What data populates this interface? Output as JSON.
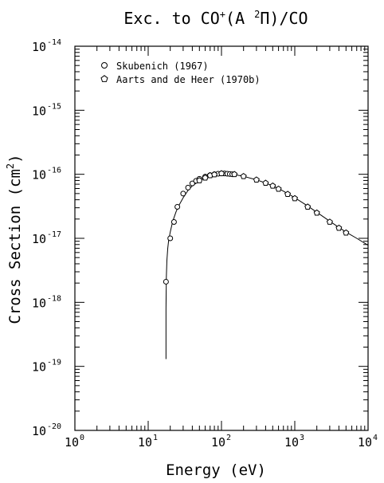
{
  "chart_data": {
    "type": "scatter",
    "title_main": "Exc. to CO",
    "title_sup": "+",
    "title_rest": "(A ",
    "title_state_sup": "2",
    "title_state": "Π)/CO",
    "xlabel": "Energy (eV)",
    "ylabel_main": "Cross Section (cm",
    "ylabel_sup": "2",
    "ylabel_end": ")",
    "x_scale": "log",
    "y_scale": "log",
    "xlim": [
      1,
      10000
    ],
    "ylim": [
      1e-20,
      1e-14
    ],
    "x_ticks": [
      {
        "base": "10",
        "exp": "0",
        "value": 1
      },
      {
        "base": "10",
        "exp": "1",
        "value": 10
      },
      {
        "base": "10",
        "exp": "2",
        "value": 100
      },
      {
        "base": "10",
        "exp": "3",
        "value": 1000
      },
      {
        "base": "10",
        "exp": "4",
        "value": 10000
      }
    ],
    "y_ticks": [
      {
        "base": "10",
        "exp": "-20",
        "value": 1e-20
      },
      {
        "base": "10",
        "exp": "-19",
        "value": 1e-19
      },
      {
        "base": "10",
        "exp": "-18",
        "value": 1e-18
      },
      {
        "base": "10",
        "exp": "-17",
        "value": 1e-17
      },
      {
        "base": "10",
        "exp": "-16",
        "value": 1e-16
      },
      {
        "base": "10",
        "exp": "-15",
        "value": 1e-15
      },
      {
        "base": "10",
        "exp": "-14",
        "value": 1e-14
      }
    ],
    "legend_position": "top-left",
    "grid": false,
    "series": [
      {
        "name": "Skubenich (1967)",
        "marker": "circle",
        "x": [
          17.5,
          20,
          22.5,
          25,
          30,
          35,
          40,
          45,
          50,
          60,
          70,
          80,
          90,
          100,
          110,
          120,
          130,
          140
        ],
        "y": [
          2.1e-18,
          1e-17,
          1.8e-17,
          3.1e-17,
          5e-17,
          6.2e-17,
          7.2e-17,
          7.9e-17,
          8.5e-17,
          9.2e-17,
          9.7e-17,
          1e-16,
          1.02e-16,
          1.03e-16,
          1.03e-16,
          1.02e-16,
          1.01e-16,
          1e-16
        ]
      },
      {
        "name": "Aarts and de Heer (1970b)",
        "marker": "pentagon",
        "x": [
          50,
          60,
          70,
          80,
          100,
          150,
          200,
          300,
          400,
          500,
          600,
          800,
          1000,
          1500,
          2000,
          3000,
          4000,
          5000
        ],
        "y": [
          8e-17,
          8.8e-17,
          9.6e-17,
          9.9e-17,
          1.03e-16,
          1e-16,
          9.3e-17,
          8.2e-17,
          7.3e-17,
          6.6e-17,
          5.9e-17,
          4.9e-17,
          4.2e-17,
          3.1e-17,
          2.5e-17,
          1.8e-17,
          1.45e-17,
          1.22e-17
        ]
      }
    ],
    "fit_curve": {
      "x": [
        17.5,
        17.5,
        17.7,
        18,
        18.5,
        19,
        20,
        21,
        22,
        24,
        26,
        30,
        35,
        40,
        50,
        60,
        70,
        80,
        100,
        120,
        150,
        200,
        300,
        400,
        500,
        600,
        800,
        1000,
        1500,
        2000,
        3000,
        4000,
        5000,
        7000,
        10000
      ],
      "y": [
        1.3e-19,
        8e-19,
        2.5e-18,
        4.5e-18,
        7e-18,
        9.2e-18,
        1.25e-17,
        1.6e-17,
        1.95e-17,
        2.6e-17,
        3.2e-17,
        4.3e-17,
        5.6e-17,
        6.6e-17,
        7.9e-17,
        8.8e-17,
        9.4e-17,
        9.8e-17,
        1.02e-16,
        1.02e-16,
        9.9e-17,
        9.3e-17,
        8.2e-17,
        7.3e-17,
        6.6e-17,
        6e-17,
        5e-17,
        4.3e-17,
        3.2e-17,
        2.55e-17,
        1.85e-17,
        1.48e-17,
        1.25e-17,
        1e-17,
        7.8e-18
      ]
    }
  }
}
